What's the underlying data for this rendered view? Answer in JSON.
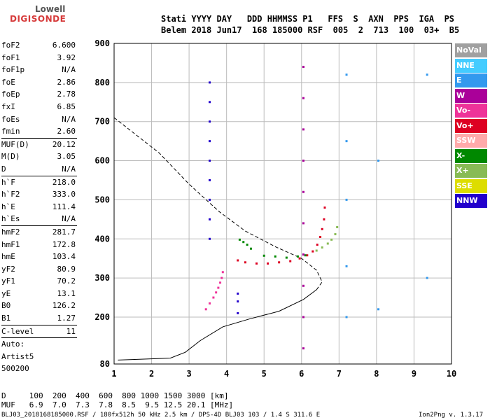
{
  "logo": {
    "line1": "Lowell",
    "line2": "DIGISONDE"
  },
  "header": {
    "line1": "Stati YYYY DAY   DDD HHMMSS P1   FFS  S  AXN  PPS  IGA  PS",
    "line2": "Belem 2018 Jun17  168 185000 RSF  005  2  713  100  03+  B5"
  },
  "params": [
    {
      "label": "foF2",
      "value": "6.600"
    },
    {
      "label": "foF1",
      "value": "3.92"
    },
    {
      "label": "foF1p",
      "value": "N/A"
    },
    {
      "label": "foE",
      "value": "2.86"
    },
    {
      "label": "foEp",
      "value": "2.78"
    },
    {
      "label": "fxI",
      "value": "6.85"
    },
    {
      "label": "foEs",
      "value": "N/A"
    },
    {
      "label": "fmin",
      "value": "2.60"
    },
    {
      "sep": true
    },
    {
      "label": "MUF(D)",
      "value": "20.12"
    },
    {
      "label": "M(D)",
      "value": "3.05"
    },
    {
      "label": "D",
      "value": "N/A"
    },
    {
      "sep": true
    },
    {
      "label": "h`F",
      "value": "218.0"
    },
    {
      "label": "h`F2",
      "value": "333.0"
    },
    {
      "label": "h`E",
      "value": "111.4"
    },
    {
      "label": "h`Es",
      "value": "N/A"
    },
    {
      "sep": true
    },
    {
      "label": "hmF2",
      "value": "281.7"
    },
    {
      "label": "hmF1",
      "value": "172.8"
    },
    {
      "label": "hmE",
      "value": "103.4"
    },
    {
      "label": "yF2",
      "value": "80.9"
    },
    {
      "label": "yF1",
      "value": "70.2"
    },
    {
      "label": "yE",
      "value": "13.1"
    },
    {
      "label": "B0",
      "value": "126.2"
    },
    {
      "label": "B1",
      "value": "1.27"
    },
    {
      "sep": true
    },
    {
      "label": "C-level",
      "value": "11"
    },
    {
      "sep": true
    },
    {
      "label": "Auto:",
      "value": ""
    },
    {
      "label": "Artist5",
      "value": ""
    },
    {
      "label": "500200",
      "value": ""
    }
  ],
  "legend": [
    {
      "label": "NoVal",
      "color": "#a0a0a0"
    },
    {
      "label": "NNE",
      "color": "#44ccff"
    },
    {
      "label": "E",
      "color": "#3399ee"
    },
    {
      "label": "W",
      "color": "#aa0099"
    },
    {
      "label": "Vo-",
      "color": "#ee3399"
    },
    {
      "label": "Vo+",
      "color": "#dd0022"
    },
    {
      "label": "SSW",
      "color": "#ffaaaa"
    },
    {
      "label": "X-",
      "color": "#008800"
    },
    {
      "label": "X+",
      "color": "#88bb55"
    },
    {
      "label": "SSE",
      "color": "#dddd00"
    },
    {
      "label": "NNW",
      "color": "#2200cc"
    }
  ],
  "footer": {
    "line1": "D     100  200  400  600  800 1000 1500 3000 [km]",
    "line2": "MUF   6.9  7.0  7.3  7.8  8.5  9.5 12.5 20.1 [MHz]",
    "line3": "BLJ03_2018168185000.RSF / 180fx512h 50 kHz 2.5 km / DPS-4D BLJ03 103 / 1.4 S 311.6 E",
    "version": "Ion2Png v. 1.3.17"
  },
  "chart_data": {
    "type": "scatter",
    "xlabel": "",
    "ylabel": "",
    "xlim": [
      1,
      10
    ],
    "ylim": [
      80,
      900
    ],
    "xticks": [
      1,
      2,
      3,
      4,
      5,
      6,
      7,
      8,
      9,
      10
    ],
    "yticks": [
      80,
      200,
      300,
      400,
      500,
      600,
      700,
      800,
      900
    ],
    "grid": true,
    "series": [
      {
        "name": "Vo+",
        "color": "#dd0022",
        "x": [
          4.3,
          4.5,
          4.8,
          5.1,
          5.4,
          5.7,
          5.95,
          6.15,
          6.3,
          6.42,
          6.5,
          6.55,
          6.6,
          6.62
        ],
        "y": [
          345,
          340,
          337,
          337,
          340,
          343,
          350,
          358,
          368,
          385,
          405,
          425,
          450,
          480
        ]
      },
      {
        "name": "Vo-",
        "color": "#ee3399",
        "x": [
          3.45,
          3.55,
          3.65,
          3.72,
          3.78,
          3.83,
          3.87,
          3.9
        ],
        "y": [
          220,
          235,
          250,
          263,
          275,
          288,
          300,
          315
        ]
      },
      {
        "name": "X-",
        "color": "#008800",
        "x": [
          4.35,
          4.45,
          4.55,
          4.65,
          5.0,
          5.3,
          5.6,
          5.9,
          6.1
        ],
        "y": [
          398,
          392,
          385,
          375,
          357,
          355,
          352,
          355,
          358
        ]
      },
      {
        "name": "X+",
        "color": "#88bb55",
        "x": [
          6.4,
          6.55,
          6.7,
          6.8,
          6.9,
          6.95
        ],
        "y": [
          370,
          378,
          388,
          398,
          412,
          430
        ]
      },
      {
        "name": "NNW",
        "color": "#2200cc",
        "x": [
          3.55,
          3.55,
          3.55,
          3.55,
          3.55,
          3.55,
          3.55,
          3.55,
          3.55,
          4.3,
          4.3,
          4.3
        ],
        "y": [
          400,
          450,
          500,
          550,
          600,
          650,
          700,
          750,
          800,
          210,
          240,
          260
        ]
      },
      {
        "name": "W",
        "color": "#aa0099",
        "x": [
          6.05,
          6.05,
          6.05,
          6.05,
          6.05,
          6.05,
          6.05,
          6.05,
          6.05,
          6.05
        ],
        "y": [
          120,
          200,
          280,
          360,
          440,
          520,
          600,
          680,
          760,
          840
        ]
      },
      {
        "name": "E",
        "color": "#3399ee",
        "x": [
          7.2,
          7.2,
          7.2,
          7.2,
          7.2,
          8.05,
          8.05,
          9.35,
          9.35
        ],
        "y": [
          200,
          330,
          500,
          650,
          820,
          220,
          600,
          300,
          820
        ]
      }
    ],
    "profile": {
      "x": [
        1.1,
        2.5,
        2.9,
        3.3,
        3.9,
        4.6,
        5.4,
        6.05,
        6.4,
        6.55,
        6.4,
        6.0,
        5.3,
        4.5,
        3.8,
        3.0,
        2.2,
        1.0
      ],
      "y": [
        90,
        95,
        110,
        140,
        175,
        195,
        215,
        245,
        270,
        290,
        320,
        350,
        380,
        420,
        470,
        540,
        620,
        710
      ]
    }
  }
}
